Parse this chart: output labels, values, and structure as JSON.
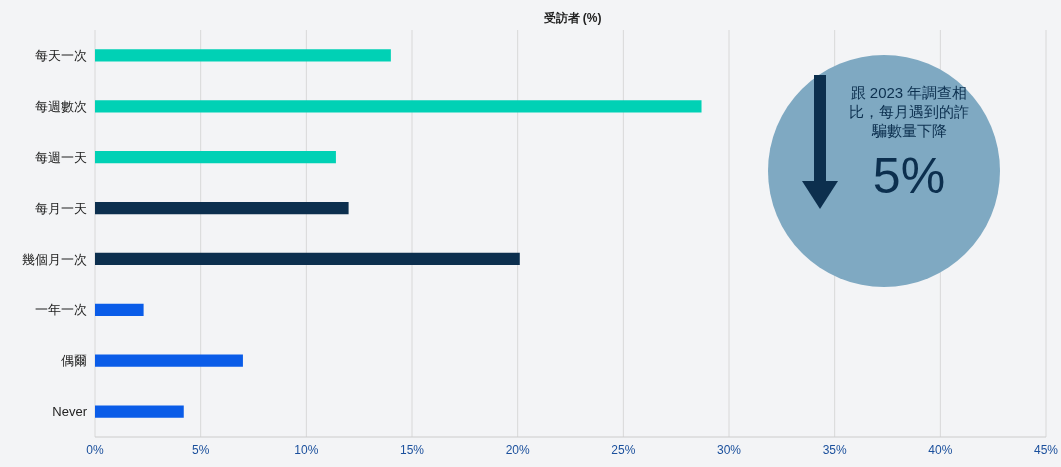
{
  "chart_data": {
    "type": "bar",
    "orientation": "horizontal",
    "xlabel": "受訪者 (%)",
    "categories": [
      "每天一次",
      "每週數次",
      "每週一天",
      "每月一天",
      "幾個月一次",
      "一年一次",
      "偶爾",
      "Never"
    ],
    "values": [
      14.0,
      28.7,
      11.4,
      12.0,
      20.1,
      2.3,
      7.0,
      4.2
    ],
    "colors": [
      "#00d1b5",
      "#00d1b5",
      "#00d1b5",
      "#0c2f4e",
      "#0c2f4e",
      "#0a5ce8",
      "#0a5ce8",
      "#0a5ce8"
    ],
    "xlim": [
      0,
      45
    ],
    "xticks": [
      {
        "value": 0,
        "label": "0%"
      },
      {
        "value": 5,
        "label": "5%"
      },
      {
        "value": 10,
        "label": "10%"
      },
      {
        "value": 15,
        "label": "15%"
      },
      {
        "value": 20,
        "label": "20%"
      },
      {
        "value": 25,
        "label": "25%"
      },
      {
        "value": 30,
        "label": "30%"
      },
      {
        "value": 35,
        "label": "35%"
      },
      {
        "value": 40,
        "label": "40%"
      },
      {
        "value": 45,
        "label": "45%"
      }
    ],
    "grid": "x",
    "annotations": [
      "跟 2023 年調查相比，每月遇到的詐騙數量下降",
      "5%"
    ]
  }
}
